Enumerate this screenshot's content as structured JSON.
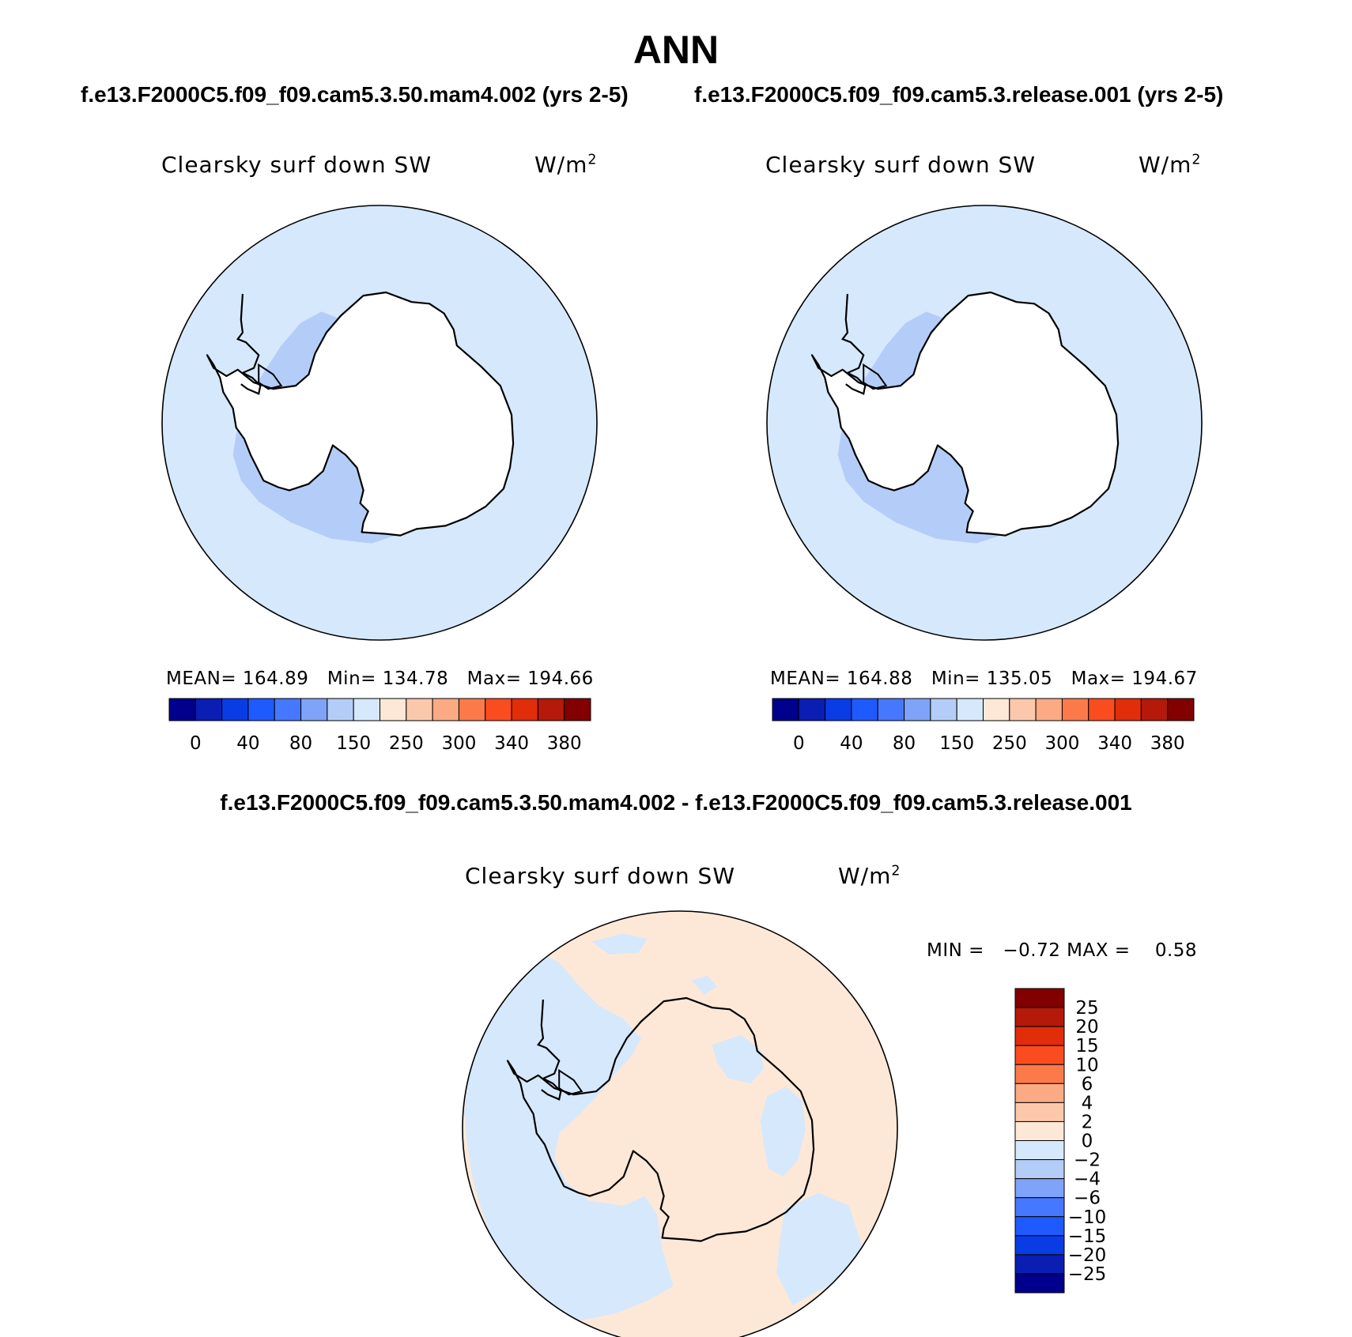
{
  "page_title": "ANN",
  "left_case": "f.e13.F2000C5.f09_f09.cam5.3.50.mam4.002 (yrs 2-5)",
  "right_case": "f.e13.F2000C5.f09_f09.cam5.3.release.001 (yrs 2-5)",
  "diff_title": "f.e13.F2000C5.f09_f09.cam5.3.50.mam4.002 - f.e13.F2000C5.f09_f09.cam5.3.release.001",
  "colors": {
    "coastline": "#000000",
    "ocean_base": "#d6e8fb",
    "field_low": "#b4cdf8",
    "ice": "#ffffff",
    "diff_pos": "#fde8d8",
    "diff_neg": "#d6e8fb"
  },
  "chart_data": [
    {
      "type": "heatmap",
      "projection": "south-polar-stereographic",
      "variable": "Clearsky surf down SW",
      "units_base": "W/m",
      "units_exp": "2",
      "stats": {
        "mean_label": "MEAN=",
        "mean": "164.89",
        "min_label": "Min=",
        "min": "134.78",
        "max_label": "Max=",
        "max": "194.66"
      },
      "colorbar": {
        "colors": [
          "#00008c",
          "#0a1eb4",
          "#0a3ce6",
          "#1e5aff",
          "#4678ff",
          "#7ea3f8",
          "#b4cdf8",
          "#d6e8fb",
          "#fde8d8",
          "#fcc8ac",
          "#fcaa84",
          "#fc7a4a",
          "#fa4c1e",
          "#e12d0a",
          "#b4190a",
          "#820000"
        ],
        "tick_labels": [
          "0",
          "40",
          "80",
          "150",
          "250",
          "300",
          "340",
          "380"
        ]
      }
    },
    {
      "type": "heatmap",
      "projection": "south-polar-stereographic",
      "variable": "Clearsky surf down SW",
      "units_base": "W/m",
      "units_exp": "2",
      "stats": {
        "mean_label": "MEAN=",
        "mean": "164.88",
        "min_label": "Min=",
        "min": "135.05",
        "max_label": "Max=",
        "max": "194.67"
      },
      "colorbar": {
        "colors": [
          "#00008c",
          "#0a1eb4",
          "#0a3ce6",
          "#1e5aff",
          "#4678ff",
          "#7ea3f8",
          "#b4cdf8",
          "#d6e8fb",
          "#fde8d8",
          "#fcc8ac",
          "#fcaa84",
          "#fc7a4a",
          "#fa4c1e",
          "#e12d0a",
          "#b4190a",
          "#820000"
        ],
        "tick_labels": [
          "0",
          "40",
          "80",
          "150",
          "250",
          "300",
          "340",
          "380"
        ]
      }
    },
    {
      "type": "heatmap",
      "projection": "south-polar-stereographic",
      "variable": "Clearsky surf down SW",
      "units_base": "W/m",
      "units_exp": "2",
      "stats": {
        "min_label": "MIN =",
        "min": "−0.72",
        "max_label": "MAX =",
        "max": "0.58"
      },
      "colorbar": {
        "colors_top_to_bottom": [
          "#820000",
          "#b4190a",
          "#e12d0a",
          "#fa4c1e",
          "#fc7a4a",
          "#fcaa84",
          "#fcc8ac",
          "#fde8d8",
          "#d6e8fb",
          "#b4cdf8",
          "#7ea3f8",
          "#4678ff",
          "#1e5aff",
          "#0a3ce6",
          "#0a1eb4",
          "#00008c"
        ],
        "tick_labels_top_to_bottom": [
          "25",
          "20",
          "15",
          "10",
          "6",
          "4",
          "2",
          "0",
          "−2",
          "−4",
          "−6",
          "−10",
          "−15",
          "−20",
          "−25"
        ]
      }
    }
  ]
}
